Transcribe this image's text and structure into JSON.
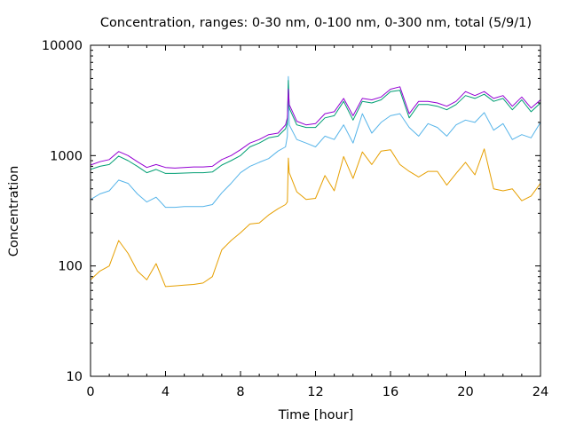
{
  "chart_data": {
    "type": "line",
    "title": "Concentration, ranges: 0-30 nm, 0-100 nm, 0-300 nm, total (5/9/1)",
    "xlabel": "Time [hour]",
    "ylabel": "Concentration",
    "xlim": [
      0,
      24
    ],
    "ylim": [
      10,
      10000
    ],
    "yscale": "log",
    "x_ticks": [
      0,
      4,
      8,
      12,
      16,
      20,
      24
    ],
    "x_tick_labels": [
      "0",
      "4",
      "8",
      "12",
      "16",
      "20",
      "24"
    ],
    "y_ticks": [
      10,
      100,
      1000,
      10000
    ],
    "y_tick_labels": [
      "10",
      "100",
      "1000",
      "10000"
    ],
    "grid": false,
    "legend": "none",
    "x": [
      0,
      0.5,
      1,
      1.5,
      2,
      2.5,
      3,
      3.5,
      4,
      4.5,
      5,
      5.5,
      6,
      6.5,
      7,
      7.5,
      8,
      8.5,
      9,
      9.5,
      10,
      10.4,
      10.5,
      10.55,
      10.6,
      11,
      11.5,
      12,
      12.5,
      13,
      13.5,
      14,
      14.5,
      15,
      15.5,
      16,
      16.5,
      17,
      17.5,
      18,
      18.5,
      19,
      19.5,
      20,
      20.5,
      21,
      21.5,
      22,
      22.5,
      23,
      23.5,
      24
    ],
    "series": [
      {
        "name": "0-30 nm",
        "color": "#e69f00",
        "values": [
          75,
          90,
          100,
          170,
          130,
          90,
          75,
          105,
          65,
          66,
          67,
          68,
          70,
          80,
          140,
          170,
          200,
          240,
          245,
          290,
          330,
          360,
          380,
          950,
          700,
          470,
          400,
          410,
          660,
          480,
          980,
          620,
          1080,
          830,
          1100,
          1130,
          830,
          720,
          640,
          720,
          720,
          540,
          690,
          870,
          670,
          1150,
          500,
          480,
          500,
          390,
          430,
          560
        ]
      },
      {
        "name": "0-100 nm",
        "color": "#56b4e9",
        "values": [
          400,
          450,
          480,
          600,
          560,
          450,
          380,
          420,
          340,
          340,
          345,
          345,
          345,
          360,
          460,
          560,
          700,
          800,
          870,
          940,
          1100,
          1200,
          1500,
          5200,
          1900,
          1400,
          1300,
          1200,
          1500,
          1400,
          1900,
          1300,
          2400,
          1600,
          2000,
          2300,
          2400,
          1800,
          1500,
          1950,
          1800,
          1500,
          1900,
          2100,
          2000,
          2450,
          1700,
          1950,
          1400,
          1550,
          1450,
          2000
        ]
      },
      {
        "name": "0-300 nm",
        "color": "#009e73",
        "values": [
          750,
          800,
          830,
          990,
          900,
          800,
          700,
          750,
          690,
          690,
          695,
          700,
          700,
          710,
          820,
          900,
          1000,
          1200,
          1300,
          1450,
          1500,
          1750,
          2000,
          4800,
          2700,
          1900,
          1800,
          1800,
          2200,
          2300,
          3100,
          2100,
          3100,
          3000,
          3200,
          3800,
          3900,
          2200,
          2900,
          2900,
          2800,
          2600,
          2900,
          3500,
          3300,
          3600,
          3100,
          3300,
          2600,
          3200,
          2500,
          3000
        ]
      },
      {
        "name": "total",
        "color": "#9400d3",
        "values": [
          820,
          880,
          920,
          1090,
          1000,
          880,
          780,
          830,
          780,
          770,
          780,
          790,
          790,
          800,
          920,
          1000,
          1130,
          1300,
          1400,
          1550,
          1600,
          1900,
          2200,
          4000,
          2900,
          2050,
          1900,
          1950,
          2400,
          2500,
          3300,
          2300,
          3300,
          3200,
          3400,
          4000,
          4200,
          2400,
          3100,
          3100,
          3000,
          2800,
          3100,
          3800,
          3500,
          3800,
          3300,
          3500,
          2800,
          3400,
          2700,
          3200
        ]
      }
    ]
  }
}
